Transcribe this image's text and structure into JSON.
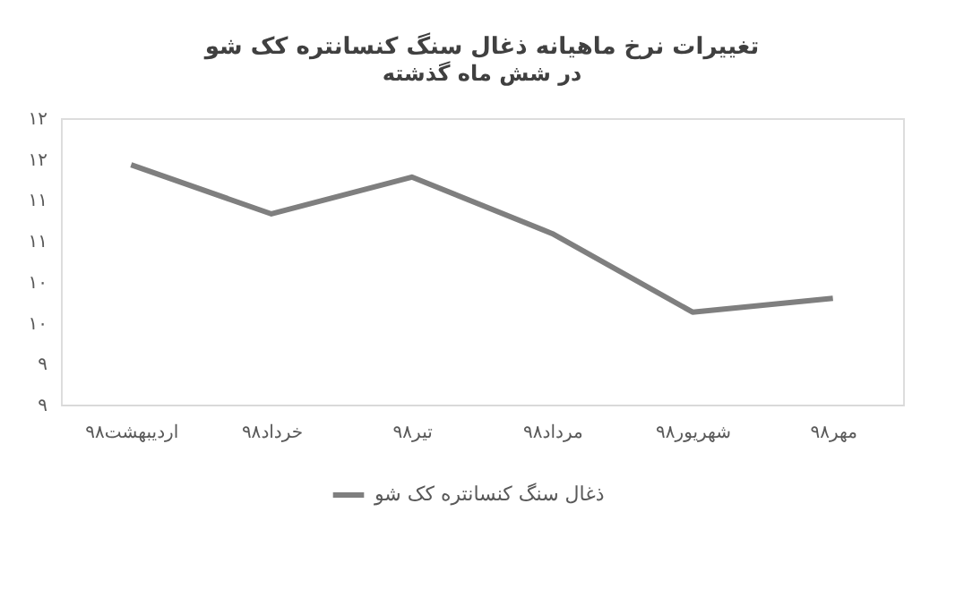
{
  "chart_data": {
    "type": "line",
    "title": "تغییرات نرخ ماهیانه ذغال سنگ کنسانتره کک شو",
    "subtitle": "در شش ماه گذشته",
    "categories": [
      "اردیبهشت۹۸",
      "خرداد۹۸",
      "تیر۹۸",
      "مرداد۹۸",
      "شهریور۹۸",
      "مهر۹۸"
    ],
    "series": [
      {
        "name": "ذغال سنگ کنسانتره کک شو",
        "color": "#7f7f7f",
        "values": [
          11.93,
          11.33,
          11.78,
          11.09,
          10.13,
          10.3
        ]
      }
    ],
    "ylim": [
      9,
      12.5
    ],
    "yticks": [
      {
        "value": 9,
        "label": "۹"
      },
      {
        "value": 9.5,
        "label": "۹"
      },
      {
        "value": 10,
        "label": "۱۰"
      },
      {
        "value": 10.5,
        "label": "۱۰"
      },
      {
        "value": 11,
        "label": "۱۱"
      },
      {
        "value": 11.5,
        "label": "۱۱"
      },
      {
        "value": 12,
        "label": "۱۲"
      },
      {
        "value": 12.5,
        "label": "۱۲"
      }
    ],
    "grid": false,
    "legend": "bottom",
    "marker": "none",
    "line_style": "solid"
  }
}
